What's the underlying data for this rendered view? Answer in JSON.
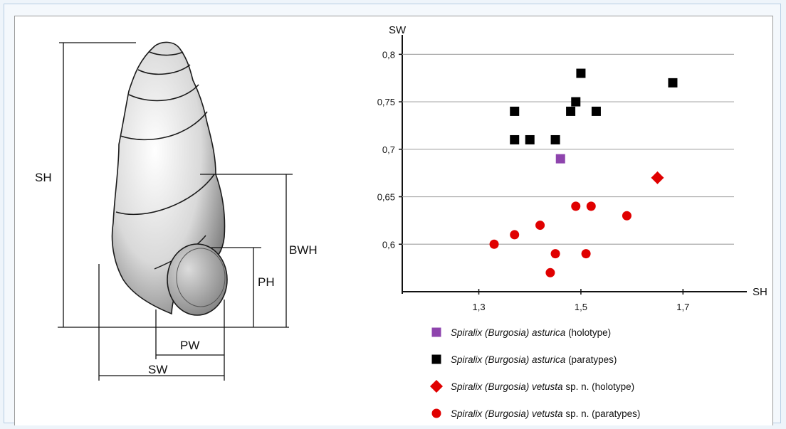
{
  "shell_diagram": {
    "labels": {
      "sh": "SH",
      "bwh": "BWH",
      "ph": "PH",
      "pw": "PW",
      "sw": "SW"
    }
  },
  "chart_data": {
    "type": "scatter",
    "xlabel": "SH",
    "ylabel": "SW",
    "xlim": [
      1.15,
      1.8
    ],
    "ylim": [
      0.55,
      0.81
    ],
    "xticks": [
      1.3,
      1.5,
      1.7
    ],
    "xtick_labels": [
      "1,3",
      "1,5",
      "1,7"
    ],
    "yticks": [
      0.6,
      0.65,
      0.7,
      0.75,
      0.8
    ],
    "ytick_labels": [
      "0,6",
      "0,65",
      "0,7",
      "0,75",
      "0,8"
    ],
    "grid": "horizontal",
    "legend_position": "bottom",
    "series": [
      {
        "genus": "Spiralix",
        "subgenus": "(Burgosia)",
        "species": "asturica",
        "suffix": "(holotype)",
        "marker": "square",
        "color": "#8e44ad",
        "points": [
          [
            1.46,
            0.69
          ]
        ]
      },
      {
        "genus": "Spiralix",
        "subgenus": "(Burgosia)",
        "species": "asturica",
        "suffix": "(paratypes)",
        "marker": "square",
        "color": "#000000",
        "points": [
          [
            1.37,
            0.74
          ],
          [
            1.37,
            0.71
          ],
          [
            1.4,
            0.71
          ],
          [
            1.45,
            0.71
          ],
          [
            1.48,
            0.74
          ],
          [
            1.49,
            0.75
          ],
          [
            1.5,
            0.78
          ],
          [
            1.53,
            0.74
          ],
          [
            1.68,
            0.77
          ]
        ]
      },
      {
        "genus": "Spiralix",
        "subgenus": "(Burgosia)",
        "species": "vetusta",
        "suffix": "sp. n. (holotype)",
        "marker": "diamond",
        "color": "#e00000",
        "points": [
          [
            1.65,
            0.67
          ]
        ]
      },
      {
        "genus": "Spiralix",
        "subgenus": "(Burgosia)",
        "species": "vetusta",
        "suffix": "sp. n. (paratypes)",
        "marker": "circle",
        "color": "#e00000",
        "points": [
          [
            1.33,
            0.6
          ],
          [
            1.37,
            0.61
          ],
          [
            1.42,
            0.62
          ],
          [
            1.44,
            0.57
          ],
          [
            1.45,
            0.59
          ],
          [
            1.49,
            0.64
          ],
          [
            1.51,
            0.59
          ],
          [
            1.52,
            0.64
          ],
          [
            1.59,
            0.63
          ]
        ]
      }
    ]
  }
}
